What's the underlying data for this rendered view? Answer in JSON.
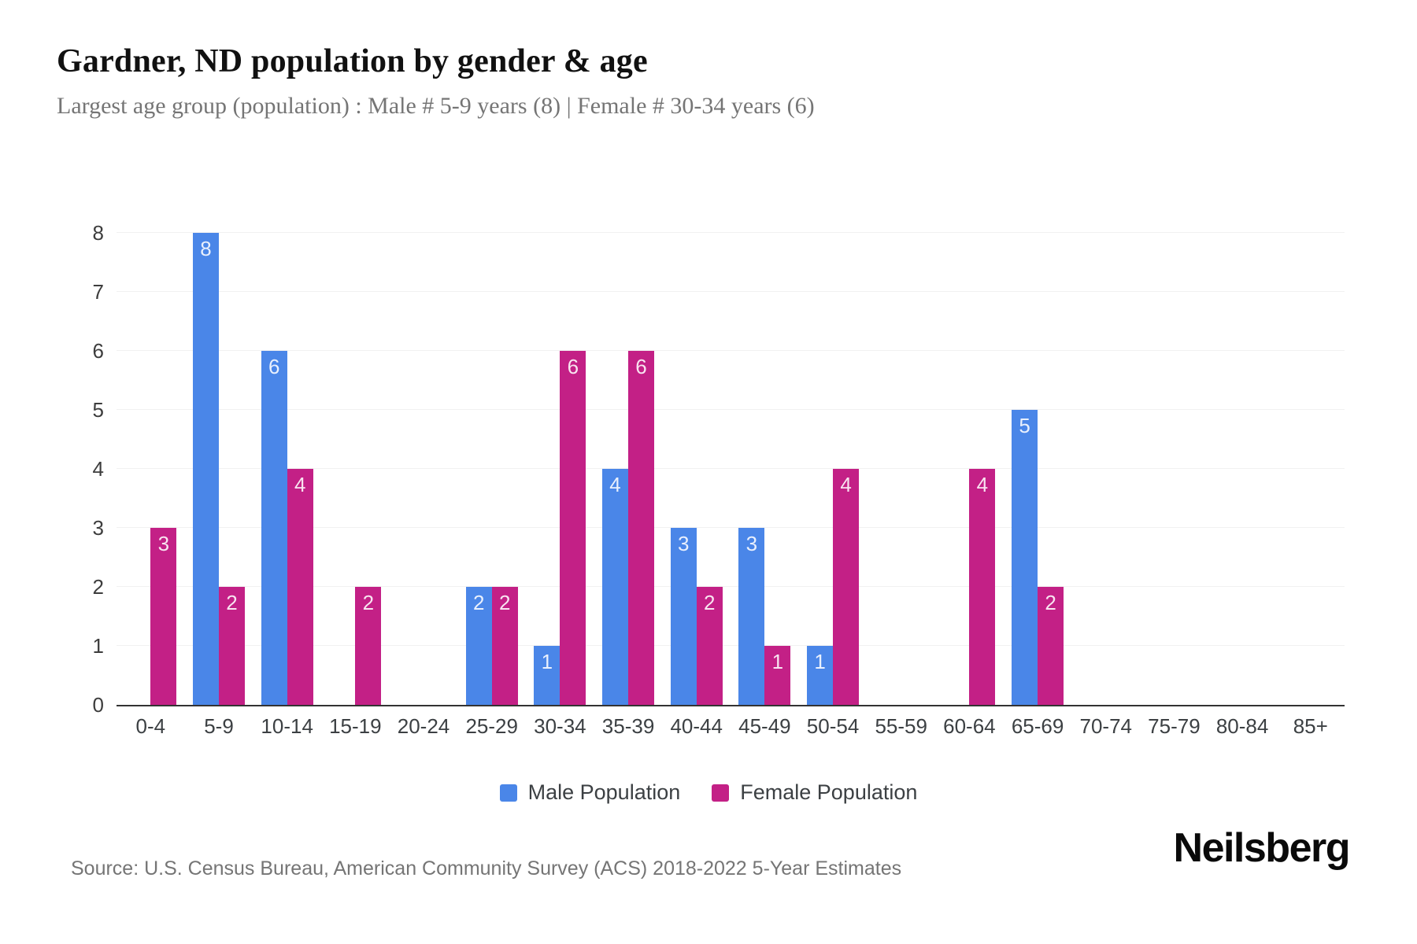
{
  "header": {
    "title": "Gardner, ND population by gender & age",
    "subtitle": "Largest age group (population) : Male # 5-9 years (8) | Female # 30-34 years (6)"
  },
  "chart_data": {
    "type": "bar",
    "title": "Gardner, ND population by gender & age",
    "categories": [
      "0-4",
      "5-9",
      "10-14",
      "15-19",
      "20-24",
      "25-29",
      "30-34",
      "35-39",
      "40-44",
      "45-49",
      "50-54",
      "55-59",
      "60-64",
      "65-69",
      "70-74",
      "75-79",
      "80-84",
      "85+"
    ],
    "series": [
      {
        "name": "Male Population",
        "color": "#4a86e8",
        "values": [
          0,
          8,
          6,
          0,
          0,
          2,
          1,
          4,
          3,
          3,
          1,
          0,
          0,
          5,
          0,
          0,
          0,
          0
        ]
      },
      {
        "name": "Female Population",
        "color": "#c32086",
        "values": [
          3,
          2,
          4,
          2,
          0,
          2,
          6,
          6,
          2,
          1,
          4,
          0,
          4,
          2,
          0,
          0,
          0,
          0
        ]
      }
    ],
    "xlabel": "",
    "ylabel": "",
    "ylim": [
      0,
      8
    ],
    "yticks": [
      0,
      1,
      2,
      3,
      4,
      5,
      6,
      7,
      8
    ],
    "grid": true,
    "legend_position": "bottom",
    "bar_labels_shown": true
  },
  "footer": {
    "source": "Source: U.S. Census Bureau, American Community Survey (ACS) 2018-2022 5-Year Estimates",
    "logo": "Neilsberg"
  }
}
